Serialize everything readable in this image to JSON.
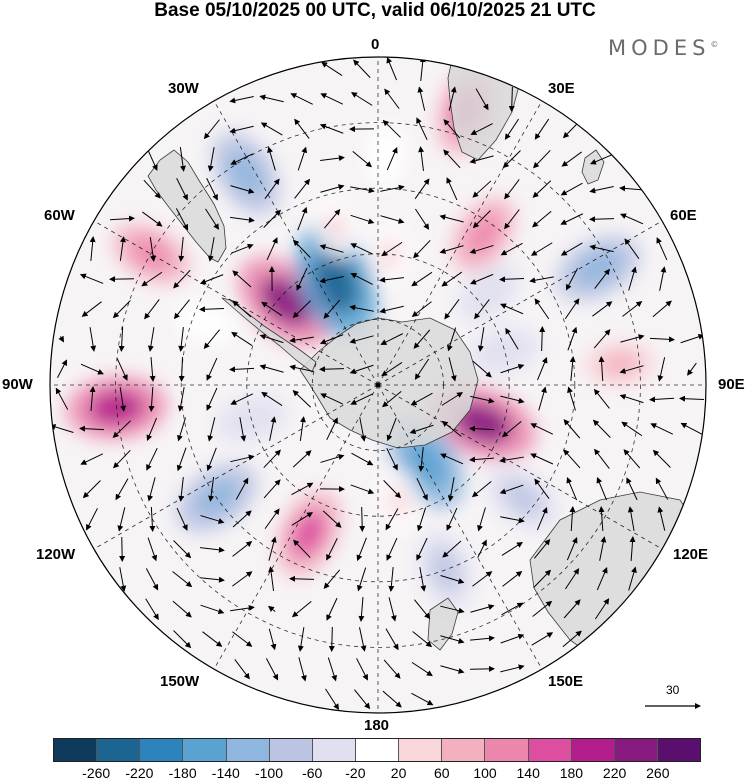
{
  "title": "Base 05/10/2025 00 UTC, valid 06/10/2025 21 UTC",
  "brand": {
    "name": "MODES",
    "mark": "©"
  },
  "longitude_labels": {
    "lon_0": "0",
    "lon_30e": "30E",
    "lon_60e": "60E",
    "lon_90e": "90E",
    "lon_120e": "120E",
    "lon_150e": "150E",
    "lon_180": "180",
    "lon_150w": "150W",
    "lon_120w": "120W",
    "lon_90w": "90W",
    "lon_60w": "60W",
    "lon_30w": "30W"
  },
  "reference_vector": {
    "label": "30"
  },
  "colorbar": {
    "colors": [
      "#0e3a5c",
      "#1c6593",
      "#2d83bb",
      "#5aa2d2",
      "#8fb6de",
      "#bcc4e3",
      "#e1e0f0",
      "#ffffff",
      "#f8d6da",
      "#f3b0bf",
      "#ec86ad",
      "#dd4ea0",
      "#b41d8c",
      "#861a80",
      "#5a0f6e"
    ],
    "tick_labels": [
      "-260",
      "-220",
      "-180",
      "-140",
      "-100",
      "-60",
      "-20",
      "20",
      "60",
      "100",
      "140",
      "180",
      "220",
      "260"
    ]
  },
  "palette": {
    "land": "#d9d9d9",
    "coast": "#3a3a3a",
    "grid": "#000000",
    "arrow": "#000000"
  },
  "anomaly_cells": [
    {
      "lon": 2,
      "colat": 35,
      "value": -20
    },
    {
      "lon": 5,
      "colat": 20,
      "value": 20
    },
    {
      "lon": 18,
      "colat": 44,
      "value": 140
    },
    {
      "lon": 35,
      "colat": 28,
      "value": 100
    },
    {
      "lon": 62,
      "colat": 38,
      "value": -140
    },
    {
      "lon": 50,
      "colat": 22,
      "value": -60
    },
    {
      "lon": 75,
      "colat": 20,
      "value": -60
    },
    {
      "lon": 85,
      "colat": 37,
      "value": 60
    },
    {
      "lon": 110,
      "colat": 17,
      "value": 220
    },
    {
      "lon": 128,
      "colat": 28,
      "value": -100
    },
    {
      "lon": 148,
      "colat": 14,
      "value": -180
    },
    {
      "lon": 160,
      "colat": 30,
      "value": -100
    },
    {
      "lon": 170,
      "colat": 18,
      "value": 20
    },
    {
      "lon": -155,
      "colat": 25,
      "value": 140
    },
    {
      "lon": -125,
      "colat": 30,
      "value": -140
    },
    {
      "lon": -105,
      "colat": 20,
      "value": -60
    },
    {
      "lon": -95,
      "colat": 40,
      "value": 180
    },
    {
      "lon": -70,
      "colat": 28,
      "value": -20
    },
    {
      "lon": -48,
      "colat": 19,
      "value": 220
    },
    {
      "lon": -22,
      "colat": 17,
      "value": -260
    },
    {
      "lon": -15,
      "colat": 25,
      "value": 20
    },
    {
      "lon": -32,
      "colat": 38,
      "value": -140
    },
    {
      "lon": -60,
      "colat": 40,
      "value": 100
    }
  ]
}
